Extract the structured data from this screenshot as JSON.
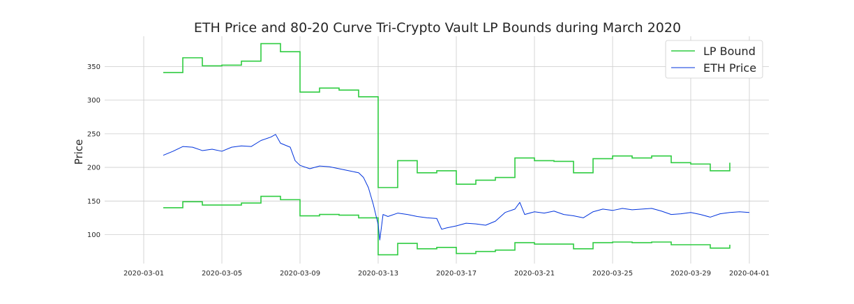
{
  "chart_data": {
    "type": "line",
    "title": "ETH Price and 80-20 Curve Tri-Crypto Vault LP Bounds during March 2020",
    "xlabel": "",
    "ylabel": "Price",
    "x_axis": "date",
    "xlim": [
      "2020-02-28",
      "2020-04-02"
    ],
    "ylim": [
      57,
      395
    ],
    "x_ticks": [
      "2020-03-01",
      "2020-03-05",
      "2020-03-09",
      "2020-03-13",
      "2020-03-17",
      "2020-03-21",
      "2020-03-25",
      "2020-03-29",
      "2020-04-01"
    ],
    "y_ticks": [
      100,
      150,
      200,
      250,
      300,
      350
    ],
    "grid": true,
    "legend": "top-right",
    "series": [
      {
        "name": "LP Bound",
        "color": "#2ecc40",
        "style": "step",
        "upper": [
          [
            "2020-03-02",
            341
          ],
          [
            "2020-03-03",
            363
          ],
          [
            "2020-03-04",
            351
          ],
          [
            "2020-03-05",
            352
          ],
          [
            "2020-03-06",
            358
          ],
          [
            "2020-03-07",
            384
          ],
          [
            "2020-03-08",
            372
          ],
          [
            "2020-03-09",
            312
          ],
          [
            "2020-03-10",
            318
          ],
          [
            "2020-03-11",
            315
          ],
          [
            "2020-03-12",
            305
          ],
          [
            "2020-03-13",
            170
          ],
          [
            "2020-03-14",
            210
          ],
          [
            "2020-03-15",
            192
          ],
          [
            "2020-03-16",
            195
          ],
          [
            "2020-03-17",
            175
          ],
          [
            "2020-03-18",
            181
          ],
          [
            "2020-03-19",
            185
          ],
          [
            "2020-03-20",
            214
          ],
          [
            "2020-03-21",
            210
          ],
          [
            "2020-03-22",
            209
          ],
          [
            "2020-03-23",
            192
          ],
          [
            "2020-03-24",
            213
          ],
          [
            "2020-03-25",
            217
          ],
          [
            "2020-03-26",
            214
          ],
          [
            "2020-03-27",
            217
          ],
          [
            "2020-03-28",
            207
          ],
          [
            "2020-03-29",
            205
          ],
          [
            "2020-03-30",
            195
          ],
          [
            "2020-03-31",
            207
          ]
        ],
        "lower": [
          [
            "2020-03-02",
            140
          ],
          [
            "2020-03-03",
            149
          ],
          [
            "2020-03-04",
            144
          ],
          [
            "2020-03-05",
            144
          ],
          [
            "2020-03-06",
            147
          ],
          [
            "2020-03-07",
            157
          ],
          [
            "2020-03-08",
            152
          ],
          [
            "2020-03-09",
            128
          ],
          [
            "2020-03-10",
            130
          ],
          [
            "2020-03-11",
            129
          ],
          [
            "2020-03-12",
            125
          ],
          [
            "2020-03-13",
            70
          ],
          [
            "2020-03-14",
            87
          ],
          [
            "2020-03-15",
            79
          ],
          [
            "2020-03-16",
            81
          ],
          [
            "2020-03-17",
            72
          ],
          [
            "2020-03-18",
            75
          ],
          [
            "2020-03-19",
            77
          ],
          [
            "2020-03-20",
            88
          ],
          [
            "2020-03-21",
            86
          ],
          [
            "2020-03-22",
            86
          ],
          [
            "2020-03-23",
            79
          ],
          [
            "2020-03-24",
            88
          ],
          [
            "2020-03-25",
            89
          ],
          [
            "2020-03-26",
            88
          ],
          [
            "2020-03-27",
            89
          ],
          [
            "2020-03-28",
            85
          ],
          [
            "2020-03-29",
            85
          ],
          [
            "2020-03-30",
            80
          ],
          [
            "2020-03-31",
            85
          ]
        ]
      },
      {
        "name": "ETH Price",
        "color": "#0033dd",
        "style": "line",
        "points": [
          [
            "2020-03-02",
            218
          ],
          [
            "2020-03-02 12:00",
            224
          ],
          [
            "2020-03-03",
            231
          ],
          [
            "2020-03-03 12:00",
            230
          ],
          [
            "2020-03-04",
            225
          ],
          [
            "2020-03-04 12:00",
            227
          ],
          [
            "2020-03-05",
            224
          ],
          [
            "2020-03-05 12:00",
            230
          ],
          [
            "2020-03-06",
            232
          ],
          [
            "2020-03-06 12:00",
            231
          ],
          [
            "2020-03-07",
            240
          ],
          [
            "2020-03-07 12:00",
            245
          ],
          [
            "2020-03-07 18:00",
            249
          ],
          [
            "2020-03-08",
            236
          ],
          [
            "2020-03-08 12:00",
            230
          ],
          [
            "2020-03-08 18:00",
            210
          ],
          [
            "2020-03-09",
            203
          ],
          [
            "2020-03-09 12:00",
            198
          ],
          [
            "2020-03-10",
            202
          ],
          [
            "2020-03-10 12:00",
            201
          ],
          [
            "2020-03-11",
            198
          ],
          [
            "2020-03-11 12:00",
            195
          ],
          [
            "2020-03-12",
            192
          ],
          [
            "2020-03-12 06:00",
            185
          ],
          [
            "2020-03-12 12:00",
            170
          ],
          [
            "2020-03-12 18:00",
            145
          ],
          [
            "2020-03-13",
            115
          ],
          [
            "2020-03-13 02:00",
            92
          ],
          [
            "2020-03-13 06:00",
            130
          ],
          [
            "2020-03-13 12:00",
            127
          ],
          [
            "2020-03-14",
            132
          ],
          [
            "2020-03-14 12:00",
            130
          ],
          [
            "2020-03-15",
            127
          ],
          [
            "2020-03-15 12:00",
            125
          ],
          [
            "2020-03-16",
            124
          ],
          [
            "2020-03-16 06:00",
            108
          ],
          [
            "2020-03-16 12:00",
            110
          ],
          [
            "2020-03-17",
            113
          ],
          [
            "2020-03-17 12:00",
            117
          ],
          [
            "2020-03-18",
            116
          ],
          [
            "2020-03-18 12:00",
            114
          ],
          [
            "2020-03-19",
            120
          ],
          [
            "2020-03-19 12:00",
            133
          ],
          [
            "2020-03-20",
            138
          ],
          [
            "2020-03-20 06:00",
            148
          ],
          [
            "2020-03-20 12:00",
            130
          ],
          [
            "2020-03-21",
            134
          ],
          [
            "2020-03-21 12:00",
            132
          ],
          [
            "2020-03-22",
            135
          ],
          [
            "2020-03-22 12:00",
            130
          ],
          [
            "2020-03-23",
            128
          ],
          [
            "2020-03-23 12:00",
            125
          ],
          [
            "2020-03-24",
            134
          ],
          [
            "2020-03-24 12:00",
            138
          ],
          [
            "2020-03-25",
            136
          ],
          [
            "2020-03-25 12:00",
            139
          ],
          [
            "2020-03-26",
            137
          ],
          [
            "2020-03-26 12:00",
            138
          ],
          [
            "2020-03-27",
            139
          ],
          [
            "2020-03-27 12:00",
            135
          ],
          [
            "2020-03-28",
            130
          ],
          [
            "2020-03-28 12:00",
            131
          ],
          [
            "2020-03-29",
            133
          ],
          [
            "2020-03-29 12:00",
            130
          ],
          [
            "2020-03-30",
            126
          ],
          [
            "2020-03-30 12:00",
            131
          ],
          [
            "2020-03-31",
            133
          ],
          [
            "2020-03-31 12:00",
            134
          ],
          [
            "2020-04-01",
            133
          ]
        ]
      }
    ]
  }
}
